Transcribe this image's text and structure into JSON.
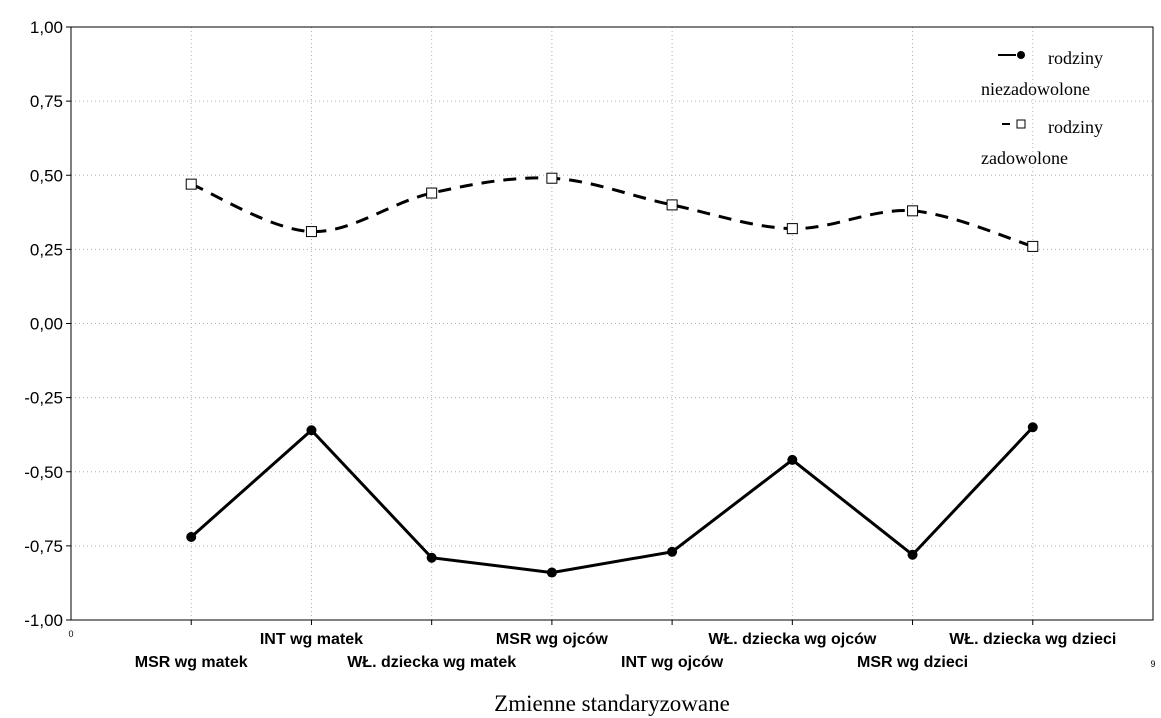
{
  "chart_data": {
    "type": "line",
    "xlabel": "Zmienne standaryzowane",
    "ylabel": "",
    "ylim": [
      -1.0,
      1.0
    ],
    "y_ticks": [
      "1,00",
      "0,75",
      "0,50",
      "0,25",
      "0,00",
      "-0,25",
      "-0,50",
      "-0,75",
      "-1,00"
    ],
    "y_tick_values": [
      1.0,
      0.75,
      0.5,
      0.25,
      0.0,
      -0.25,
      -0.5,
      -0.75,
      -1.0
    ],
    "x_edge_labels": [
      "0",
      "9"
    ],
    "xlim": [
      0,
      9
    ],
    "grid": true,
    "legend_position": "top-right",
    "categories": [
      "MSR wg matek",
      "INT wg matek",
      "WŁ. dziecka wg matek",
      "MSR wg ojców",
      "INT wg ojców",
      "WŁ. dziecka wg ojców",
      "MSR wg dzieci",
      "WŁ. dziecka wg dzieci"
    ],
    "series": [
      {
        "name_line1": "rodziny",
        "name_line2": "niezadowolone",
        "style": "solid",
        "marker": "filled-circle",
        "values": [
          -0.72,
          -0.36,
          -0.79,
          -0.84,
          -0.77,
          -0.46,
          -0.78,
          -0.35
        ]
      },
      {
        "name_line1": "rodziny",
        "name_line2": "zadowolone",
        "style": "dashed",
        "marker": "open-square",
        "values": [
          0.47,
          0.31,
          0.44,
          0.49,
          0.4,
          0.32,
          0.38,
          0.26
        ]
      }
    ]
  }
}
